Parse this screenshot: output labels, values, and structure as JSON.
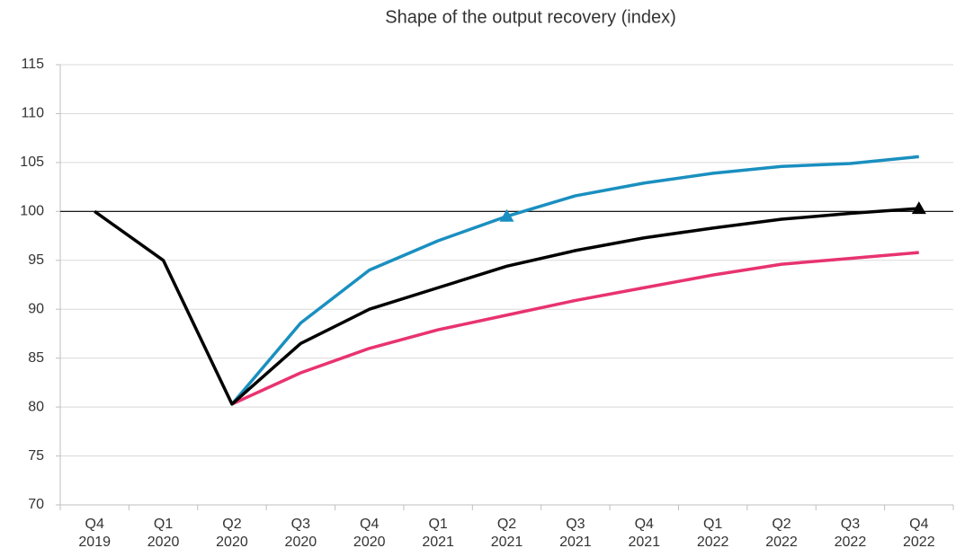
{
  "chart_data": {
    "type": "line",
    "title": "Shape of the output recovery (index)",
    "categories": [
      [
        "Q4",
        "2019"
      ],
      [
        "Q1",
        "2020"
      ],
      [
        "Q2",
        "2020"
      ],
      [
        "Q3",
        "2020"
      ],
      [
        "Q4",
        "2020"
      ],
      [
        "Q1",
        "2021"
      ],
      [
        "Q2",
        "2021"
      ],
      [
        "Q3",
        "2021"
      ],
      [
        "Q4",
        "2021"
      ],
      [
        "Q1",
        "2022"
      ],
      [
        "Q2",
        "2022"
      ],
      [
        "Q3",
        "2022"
      ],
      [
        "Q4",
        "2022"
      ]
    ],
    "series": [
      {
        "color": "#e8336f",
        "values": [
          null,
          null,
          80.3,
          83.5,
          86,
          87.9,
          89.4,
          90.9,
          92.2,
          93.5,
          94.6,
          95.2,
          95.8
        ]
      },
      {
        "color": "#1a8fc0",
        "values": [
          null,
          null,
          80.3,
          88.6,
          94,
          97,
          99.5,
          101.6,
          102.9,
          103.9,
          104.6,
          104.9,
          105.6
        ],
        "marker_index": 6
      },
      {
        "color": "#000000",
        "values": [
          100,
          95,
          80.3,
          86.5,
          90,
          92.2,
          94.4,
          96,
          97.3,
          98.3,
          99.2,
          99.8,
          100.3
        ],
        "marker_index": 12
      }
    ],
    "reference_line": 100,
    "ylim": [
      70,
      115
    ],
    "yticks": [
      70,
      75,
      80,
      85,
      90,
      95,
      100,
      105,
      110,
      115
    ],
    "grid": true
  }
}
